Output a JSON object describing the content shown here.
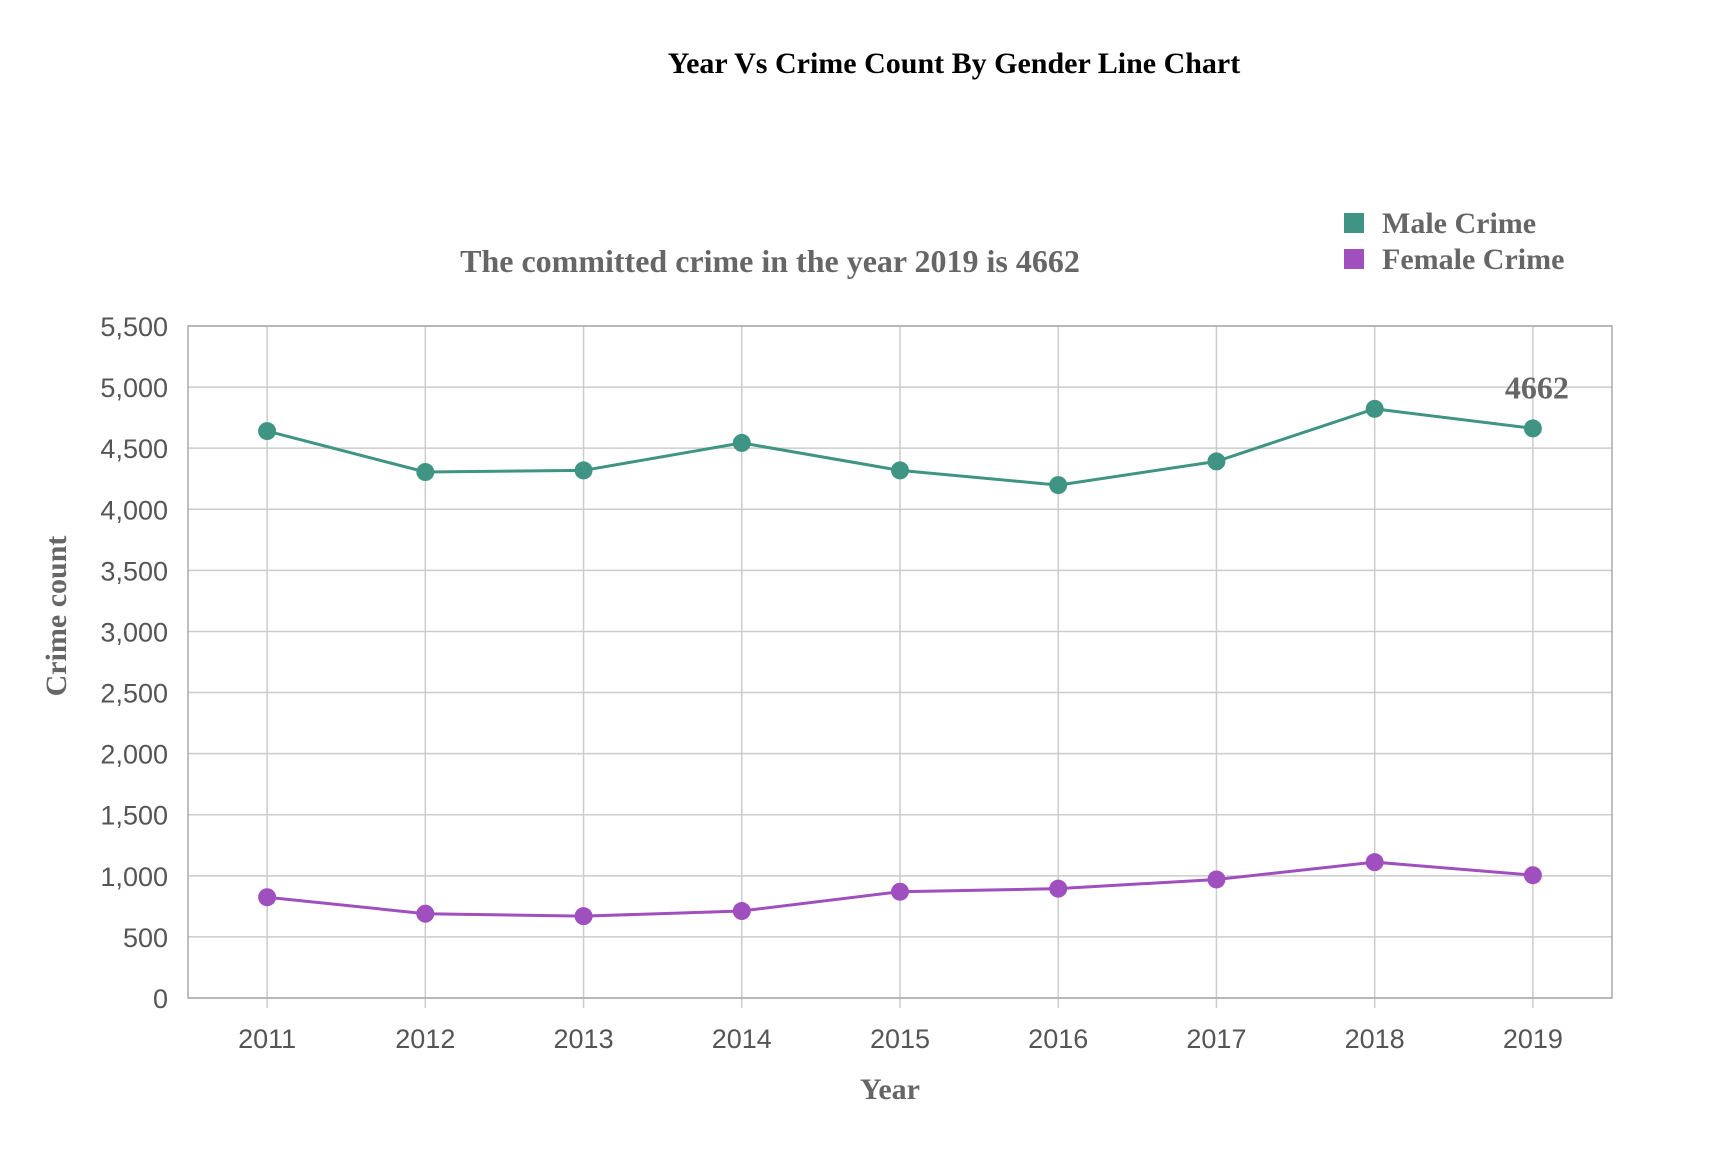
{
  "chart_data": {
    "type": "line",
    "title": "Year Vs Crime Count By Gender Line Chart",
    "subtitle": "The committed crime in the year 2019 is 4662",
    "xlabel": "Year",
    "ylabel": "Crime count",
    "categories": [
      "2011",
      "2012",
      "2013",
      "2014",
      "2015",
      "2016",
      "2017",
      "2018",
      "2019"
    ],
    "ylim": [
      0,
      5500
    ],
    "yticks": [
      0,
      500,
      1000,
      1500,
      2000,
      2500,
      3000,
      3500,
      4000,
      4500,
      5000,
      5500
    ],
    "ytick_labels": [
      "0",
      "500",
      "1,000",
      "1,500",
      "2,000",
      "2,500",
      "3,000",
      "3,500",
      "4,000",
      "4,500",
      "5,000",
      "5,500"
    ],
    "grid": true,
    "legend_position": "top-right",
    "series": [
      {
        "name": "Male Crime",
        "color": "#3f9484",
        "values": [
          4640,
          4305,
          4318,
          4543,
          4318,
          4198,
          4392,
          4822,
          4662
        ]
      },
      {
        "name": "Female Crime",
        "color": "#a04fbf",
        "values": [
          825,
          690,
          670,
          712,
          870,
          895,
          970,
          1112,
          1005
        ]
      }
    ],
    "annotations": [
      {
        "series": 0,
        "category": "2019",
        "text": "4662"
      }
    ]
  }
}
